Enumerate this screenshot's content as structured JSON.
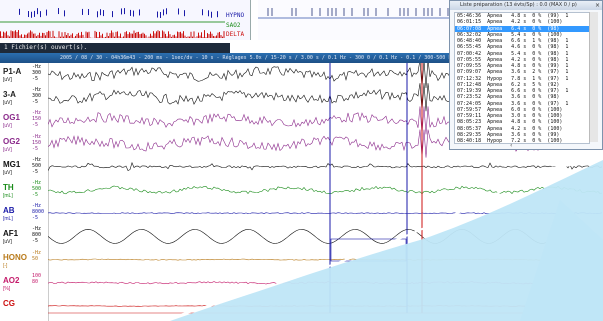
{
  "trend": {
    "labels": [
      "HYPNO",
      "SAO2",
      "DELTA"
    ],
    "colors": {
      "hypno": "#1a1aa8",
      "sao2": "#1a8c1a",
      "delta": "#cc1010"
    }
  },
  "subwindow": {
    "title": "1 Fichier(s) ouvert(s)."
  },
  "main_title": {
    "text": "2005 / 08 / 30 - 04h36m43 - 200 ms - 1sec/dv - 10 s - Réglages 5.0x / 15-20 s / 3.00 s / 0.1 Hz - 300 0 / 0.1 Hz - 0.1 / 300-500 PCP"
  },
  "channels": [
    {
      "name": "P1-A",
      "unit": "[uV]",
      "scale": [
        "-Hz",
        "300",
        "-5"
      ],
      "color": "#111111"
    },
    {
      "name": "3-A",
      "unit": "[uV]",
      "scale": [
        "-Hz",
        "300",
        "-5"
      ],
      "color": "#111111"
    },
    {
      "name": "OG1",
      "unit": "[uV]",
      "scale": [
        "-Hz",
        "150",
        "-5"
      ],
      "color": "#8b2a8b"
    },
    {
      "name": "OG2",
      "unit": "[uV]",
      "scale": [
        "-Hz",
        "150",
        "-5"
      ],
      "color": "#8b2a8b"
    },
    {
      "name": "MG1",
      "unit": "[uV]",
      "scale": [
        "-Hz",
        "500",
        "-5"
      ],
      "color": "#111111"
    },
    {
      "name": "TH",
      "unit": "[mL]",
      "scale": [
        "-Hz",
        "500",
        "-5"
      ],
      "color": "#1a8c1a"
    },
    {
      "name": "AB",
      "unit": "[mL]",
      "scale": [
        "-Hz",
        "8000",
        "-5"
      ],
      "color": "#1a1aa8"
    },
    {
      "name": "AF1",
      "unit": "[uV]",
      "scale": [
        "-Hz",
        "800",
        "-5"
      ],
      "color": "#111111"
    },
    {
      "name": "HONO",
      "unit": "[-]",
      "scale": [
        "-Hz",
        "50",
        ""
      ],
      "color": "#b87a1a"
    },
    {
      "name": "AO2",
      "unit": "[%]",
      "scale": [
        "100",
        "80",
        ""
      ],
      "color": "#c41a6a"
    },
    {
      "name": "CG",
      "unit": "",
      "scale": [
        "",
        "",
        ""
      ],
      "color": "#cc1010"
    }
  ],
  "event_window": {
    "title": "Liste préparation (13 évts/Sp) : 0.0 (MAX 0 / p)",
    "close": "×",
    "rows": [
      "05:46:36  Apnea   4.8 s  0 %  (99)  1",
      "06:01:15  Apnea   4.2 s  0 %  (100)",
      "06:07:08  Apnea   6.4 s  0 %  (98)",
      "06:32:02  Apnea   5.4 s  0 %  (100)",
      "06:48:40  Apnea   6.6 s  1 %  (98)  1",
      "06:55:45  Apnea   4.6 s  0 %  (98)  1",
      "07:00:42  Apnea   5.4 s  0 %  (98)  1",
      "07:05:55  Apnea   4.2 s  0 %  (98)  1",
      "07:09:55  Apnea   4.8 s  0 %  (99)  1",
      "07:09:07  Apnea   3.6 s  2 %  (97)  1",
      "07:12:32  Hypop   7.8 s  1 %  (97)  1",
      "07:12:48  Apnea   6.2 s  5 %  (92)",
      "07:19:39  Apnea   6.6 s  0 %  (97)  1",
      "07:23:52  Apnea   3.6 s  0 %  (98)",
      "07:24:05  Apnea   3.6 s  0 %  (97)  1",
      "07:59:57  Apnea   6.0 s  0 %  (100)",
      "07:59:11  Apnea   3.0 s  0 %  (100)",
      "08:05:23  Apnea   4.8 s  0 %  (100)",
      "08:05:37  Apnea   4.2 s  0 %  (100)",
      "08:29:35  Apnea   3.6 s  0 %  (99)",
      "08:40:18  Hypop   7.2 s  0 %  (100)",
      "09:08:31  Apnea   7.2 s  0 %  (98)"
    ],
    "selected_index": 2
  },
  "scroll_arrow": "‹"
}
